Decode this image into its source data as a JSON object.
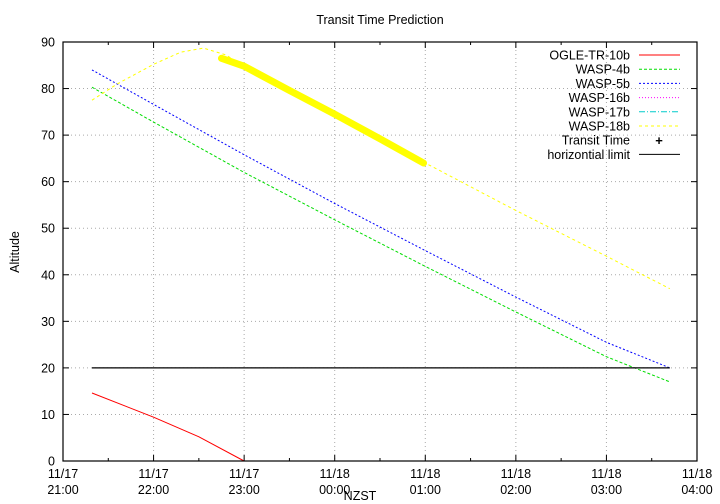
{
  "chart_data": {
    "type": "line",
    "title": "Transit Time Prediction",
    "xlabel": "NZST",
    "ylabel": "Altitude",
    "ylim": [
      0,
      90
    ],
    "yticks": [
      0,
      10,
      20,
      30,
      40,
      50,
      60,
      70,
      80,
      90
    ],
    "xlim_hours": [
      21,
      28
    ],
    "xticks": [
      {
        "date": "11/17",
        "time": "21:00",
        "h": 21
      },
      {
        "date": "11/17",
        "time": "22:00",
        "h": 22
      },
      {
        "date": "11/17",
        "time": "23:00",
        "h": 23
      },
      {
        "date": "11/18",
        "time": "00:00",
        "h": 24
      },
      {
        "date": "11/18",
        "time": "01:00",
        "h": 25
      },
      {
        "date": "11/18",
        "time": "02:00",
        "h": 26
      },
      {
        "date": "11/18",
        "time": "03:00",
        "h": 27
      },
      {
        "date": "11/18",
        "time": "04:00",
        "h": 28
      }
    ],
    "grid": true,
    "legend_position": "top-right",
    "series": [
      {
        "name": "OGLE-TR-10b",
        "color": "#ff0000",
        "dash": "",
        "points": [
          [
            21.32,
            14.6
          ],
          [
            22.0,
            9.4
          ],
          [
            22.5,
            5.2
          ],
          [
            23.0,
            0.0
          ]
        ]
      },
      {
        "name": "WASP-4b",
        "color": "#00dd00",
        "dash": "3,2",
        "points": [
          [
            21.32,
            80.3
          ],
          [
            22.0,
            72.8
          ],
          [
            23.0,
            62.0
          ],
          [
            24.0,
            51.8
          ],
          [
            25.0,
            41.8
          ],
          [
            26.0,
            32.0
          ],
          [
            27.0,
            22.4
          ],
          [
            27.7,
            17.0
          ]
        ]
      },
      {
        "name": "WASP-5b",
        "color": "#0000ff",
        "dash": "2,2",
        "points": [
          [
            21.32,
            84.0
          ],
          [
            22.0,
            76.6
          ],
          [
            23.0,
            65.8
          ],
          [
            24.0,
            55.3
          ],
          [
            25.0,
            45.2
          ],
          [
            26.0,
            35.2
          ],
          [
            27.0,
            25.5
          ],
          [
            27.7,
            20.0
          ]
        ]
      },
      {
        "name": "WASP-16b",
        "color": "#ff00ff",
        "dash": "1,2",
        "points": []
      },
      {
        "name": "WASP-17b",
        "color": "#00cccc",
        "dash": "6,2,1,2",
        "points": []
      },
      {
        "name": "WASP-18b",
        "color": "#ffff00",
        "dash": "3,3",
        "points": [
          [
            21.32,
            77.5
          ],
          [
            21.6,
            81.0
          ],
          [
            22.0,
            85.2
          ],
          [
            22.3,
            87.8
          ],
          [
            22.55,
            88.7
          ],
          [
            22.8,
            87.2
          ],
          [
            23.0,
            84.8
          ],
          [
            24.0,
            74.5
          ],
          [
            25.0,
            64.0
          ],
          [
            26.0,
            53.8
          ],
          [
            27.0,
            44.0
          ],
          [
            27.7,
            37.0
          ]
        ]
      },
      {
        "name": "Transit Time",
        "color": "#ffff00",
        "marker": "plus",
        "points": [
          [
            22.75,
            86.5
          ],
          [
            23.0,
            84.8
          ],
          [
            23.5,
            79.6
          ],
          [
            24.0,
            74.5
          ],
          [
            24.5,
            69.2
          ],
          [
            24.98,
            64.0
          ]
        ]
      },
      {
        "name": "horizontial limit",
        "color": "#000000",
        "dash": "",
        "points": [
          [
            21.32,
            20
          ],
          [
            27.7,
            20
          ]
        ]
      }
    ]
  }
}
